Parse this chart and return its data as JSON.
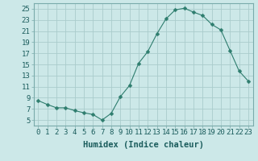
{
  "x": [
    0,
    1,
    2,
    3,
    4,
    5,
    6,
    7,
    8,
    9,
    10,
    11,
    12,
    13,
    14,
    15,
    16,
    17,
    18,
    19,
    20,
    21,
    22,
    23
  ],
  "y": [
    8.5,
    7.8,
    7.2,
    7.2,
    6.7,
    6.3,
    6.0,
    5.0,
    6.2,
    9.2,
    11.2,
    15.2,
    17.3,
    20.5,
    23.2,
    24.8,
    25.1,
    24.4,
    23.8,
    22.2,
    21.2,
    17.5,
    13.8,
    12.0
  ],
  "line_color": "#2e7d6e",
  "marker": "D",
  "marker_size": 2.5,
  "bg_color": "#cce8e8",
  "grid_color": "#aacccc",
  "xlabel": "Humidex (Indice chaleur)",
  "xlim": [
    -0.5,
    23.5
  ],
  "ylim": [
    4,
    26
  ],
  "yticks": [
    5,
    7,
    9,
    11,
    13,
    15,
    17,
    19,
    21,
    23,
    25
  ],
  "xticks": [
    0,
    1,
    2,
    3,
    4,
    5,
    6,
    7,
    8,
    9,
    10,
    11,
    12,
    13,
    14,
    15,
    16,
    17,
    18,
    19,
    20,
    21,
    22,
    23
  ],
  "label_fontsize": 7.5,
  "tick_fontsize": 6.5
}
